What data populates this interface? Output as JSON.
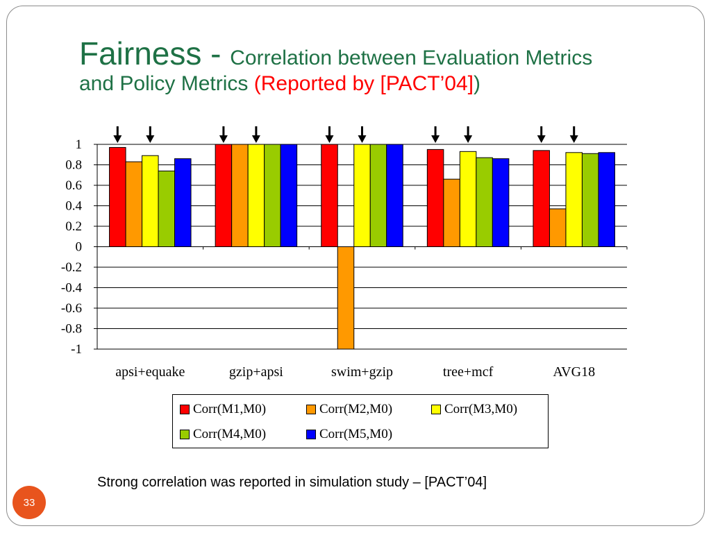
{
  "slide": {
    "title_main": "Fairness - ",
    "title_sub1": "Correlation between Evaluation Metrics",
    "title_sub2": "and Policy Metrics ",
    "title_paren_open": "(",
    "title_reported": "Reported by [PACT’04]",
    "title_paren_close": ")",
    "footnote": "Strong correlation was reported in simulation study – [PACT’04]",
    "page_number": "33"
  },
  "chart_data": {
    "type": "bar",
    "categories": [
      "apsi+equake",
      "gzip+apsi",
      "swim+gzip",
      "tree+mcf",
      "AVG18"
    ],
    "series": [
      {
        "name": "Corr(M1,M0)",
        "color": "#ff0000",
        "values": [
          0.97,
          1.0,
          1.0,
          0.95,
          0.94
        ]
      },
      {
        "name": "Corr(M2,M0)",
        "color": "#ff9900",
        "values": [
          0.83,
          1.0,
          -1.0,
          0.66,
          0.37
        ]
      },
      {
        "name": "Corr(M3,M0)",
        "color": "#ffff00",
        "values": [
          0.89,
          1.0,
          1.0,
          0.93,
          0.92
        ]
      },
      {
        "name": "Corr(M4,M0)",
        "color": "#99cc00",
        "values": [
          0.74,
          1.0,
          1.0,
          0.87,
          0.91
        ]
      },
      {
        "name": "Corr(M5,M0)",
        "color": "#0000ff",
        "values": [
          0.86,
          1.0,
          1.0,
          0.86,
          0.92
        ]
      }
    ],
    "ylim": [
      -1,
      1
    ],
    "yticks": [
      "1",
      "0.8",
      "0.6",
      "0.4",
      "0.2",
      "0",
      "-0.2",
      "-0.4",
      "-0.6",
      "-0.8",
      "-1"
    ],
    "ytick_values": [
      1,
      0.8,
      0.6,
      0.4,
      0.2,
      0,
      -0.2,
      -0.4,
      -0.6,
      -0.8,
      -1
    ],
    "grid": true,
    "legend_position": "bottom",
    "arrow_series_indices": [
      0,
      2
    ]
  }
}
